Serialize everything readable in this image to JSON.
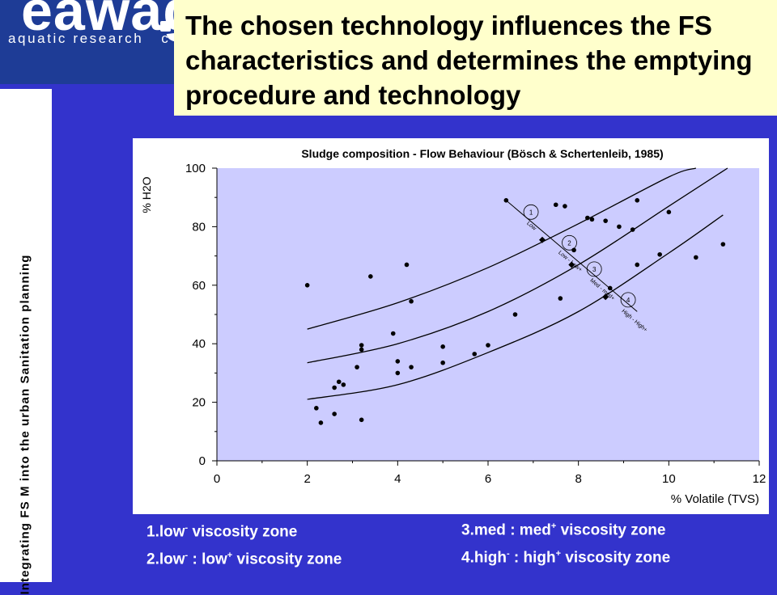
{
  "logo": {
    "word": "eawag",
    "tagline": "aquatic research",
    "tagline_tail": "c"
  },
  "title": "The chosen technology influences the FS characteristics and determines the emptying procedure and technology",
  "side_text": "Integrating FS M into the urban Sanitation planning",
  "colors": {
    "background": "#3333cc",
    "title_bg": "#ffffcc",
    "logo_bg": "#1e3c96",
    "plot_bg": "#ccccff"
  },
  "chart_data": {
    "type": "scatter",
    "title": "Sludge composition - Flow Behaviour (Bösch & Schertenleib, 1985)",
    "xlabel": "% Volatile (TVS)",
    "ylabel": "% H2O",
    "xlim": [
      0,
      12
    ],
    "ylim": [
      0,
      100
    ],
    "xticks": [
      0,
      2,
      4,
      6,
      8,
      10,
      12
    ],
    "yticks": [
      0,
      20,
      40,
      60,
      80,
      100
    ],
    "grid": false,
    "points": [
      [
        2.0,
        60
      ],
      [
        2.2,
        18
      ],
      [
        2.3,
        13
      ],
      [
        2.6,
        16
      ],
      [
        2.6,
        25
      ],
      [
        2.7,
        27
      ],
      [
        2.8,
        26
      ],
      [
        3.1,
        32
      ],
      [
        3.2,
        14
      ],
      [
        3.2,
        38
      ],
      [
        3.2,
        39.5
      ],
      [
        3.4,
        63
      ],
      [
        3.9,
        43.5
      ],
      [
        4.0,
        30
      ],
      [
        4.0,
        34
      ],
      [
        4.2,
        67
      ],
      [
        4.3,
        32
      ],
      [
        4.3,
        54.5
      ],
      [
        5.0,
        33.5
      ],
      [
        5.0,
        39
      ],
      [
        5.7,
        36.5
      ],
      [
        6.0,
        39.5
      ],
      [
        6.4,
        89
      ],
      [
        6.6,
        50
      ],
      [
        7.5,
        87.5
      ],
      [
        7.6,
        55.5
      ],
      [
        7.7,
        87
      ],
      [
        7.9,
        72
      ],
      [
        8.2,
        83
      ],
      [
        8.3,
        82.5
      ],
      [
        8.6,
        82
      ],
      [
        8.7,
        59
      ],
      [
        8.9,
        80
      ],
      [
        9.2,
        79
      ],
      [
        9.3,
        89
      ],
      [
        9.3,
        67
      ],
      [
        9.8,
        70.5
      ],
      [
        10.0,
        85
      ],
      [
        10.6,
        69.5
      ],
      [
        11.2,
        74
      ]
    ],
    "curves": [
      {
        "x": [
          2.0,
          4.0,
          6.0,
          8.0,
          10.0,
          10.6
        ],
        "y": [
          45,
          54,
          66,
          81,
          97,
          102
        ]
      },
      {
        "x": [
          2.0,
          4.0,
          6.0,
          8.0,
          10.0,
          11.3
        ],
        "y": [
          33.5,
          40,
          51,
          67,
          87,
          101
        ]
      },
      {
        "x": [
          2.0,
          4.0,
          6.0,
          8.0,
          10.0,
          11.2
        ],
        "y": [
          21,
          26,
          37,
          51,
          71,
          84
        ]
      }
    ],
    "boundary_line": {
      "x": [
        6.4,
        9.3
      ],
      "y": [
        89,
        51
      ]
    },
    "boundary_markers": [
      [
        7.2,
        75.5
      ],
      [
        7.85,
        67
      ],
      [
        8.6,
        56
      ]
    ],
    "zone_labels": [
      "1",
      "2",
      "3",
      "4"
    ],
    "segment_labels": [
      "Low",
      "Low - Low+",
      "Med - med+",
      "High - High+"
    ],
    "annotation_circles": [
      [
        6.95,
        85
      ],
      [
        7.8,
        74.5
      ],
      [
        8.35,
        65.5
      ],
      [
        9.1,
        55
      ]
    ]
  },
  "legend": [
    {
      "pre": "1.low",
      "sup1": "-",
      "mid": " viscosity zone",
      "sup2": "",
      "post": ""
    },
    {
      "pre": "2.low",
      "sup1": "-",
      "mid": " : low",
      "sup2": "+",
      "post": " viscosity zone"
    },
    {
      "pre": "3.med : med",
      "sup1": "+",
      "mid": " viscosity zone",
      "sup2": "",
      "post": ""
    },
    {
      "pre": "4.high",
      "sup1": "-",
      "mid": " : high",
      "sup2": "+",
      "post": " viscosity zone"
    }
  ]
}
